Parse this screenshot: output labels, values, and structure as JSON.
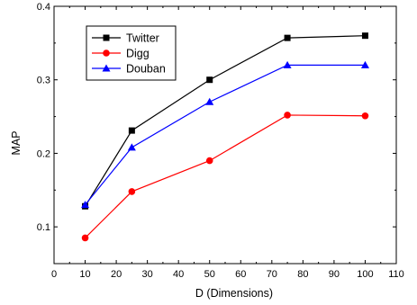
{
  "chart_data": {
    "type": "line",
    "title": "",
    "xlabel": "D (Dimensions)",
    "ylabel": "MAP",
    "xlim": [
      0,
      110
    ],
    "ylim": [
      0.05,
      0.4
    ],
    "xticks": [
      0,
      10,
      20,
      30,
      40,
      50,
      60,
      70,
      80,
      90,
      100,
      110
    ],
    "yticks": [
      0.1,
      0.2,
      0.3,
      0.4
    ],
    "grid": false,
    "legend_position": "top-left",
    "x": [
      10,
      25,
      50,
      75,
      100
    ],
    "series": [
      {
        "name": "Twitter",
        "color": "#000000",
        "marker": "square",
        "values": [
          0.128,
          0.231,
          0.3,
          0.357,
          0.36
        ]
      },
      {
        "name": "Digg",
        "color": "#ff0000",
        "marker": "circle",
        "values": [
          0.085,
          0.148,
          0.19,
          0.252,
          0.251
        ]
      },
      {
        "name": "Douban",
        "color": "#0000ff",
        "marker": "triangle",
        "values": [
          0.13,
          0.208,
          0.27,
          0.32,
          0.32
        ]
      }
    ]
  }
}
